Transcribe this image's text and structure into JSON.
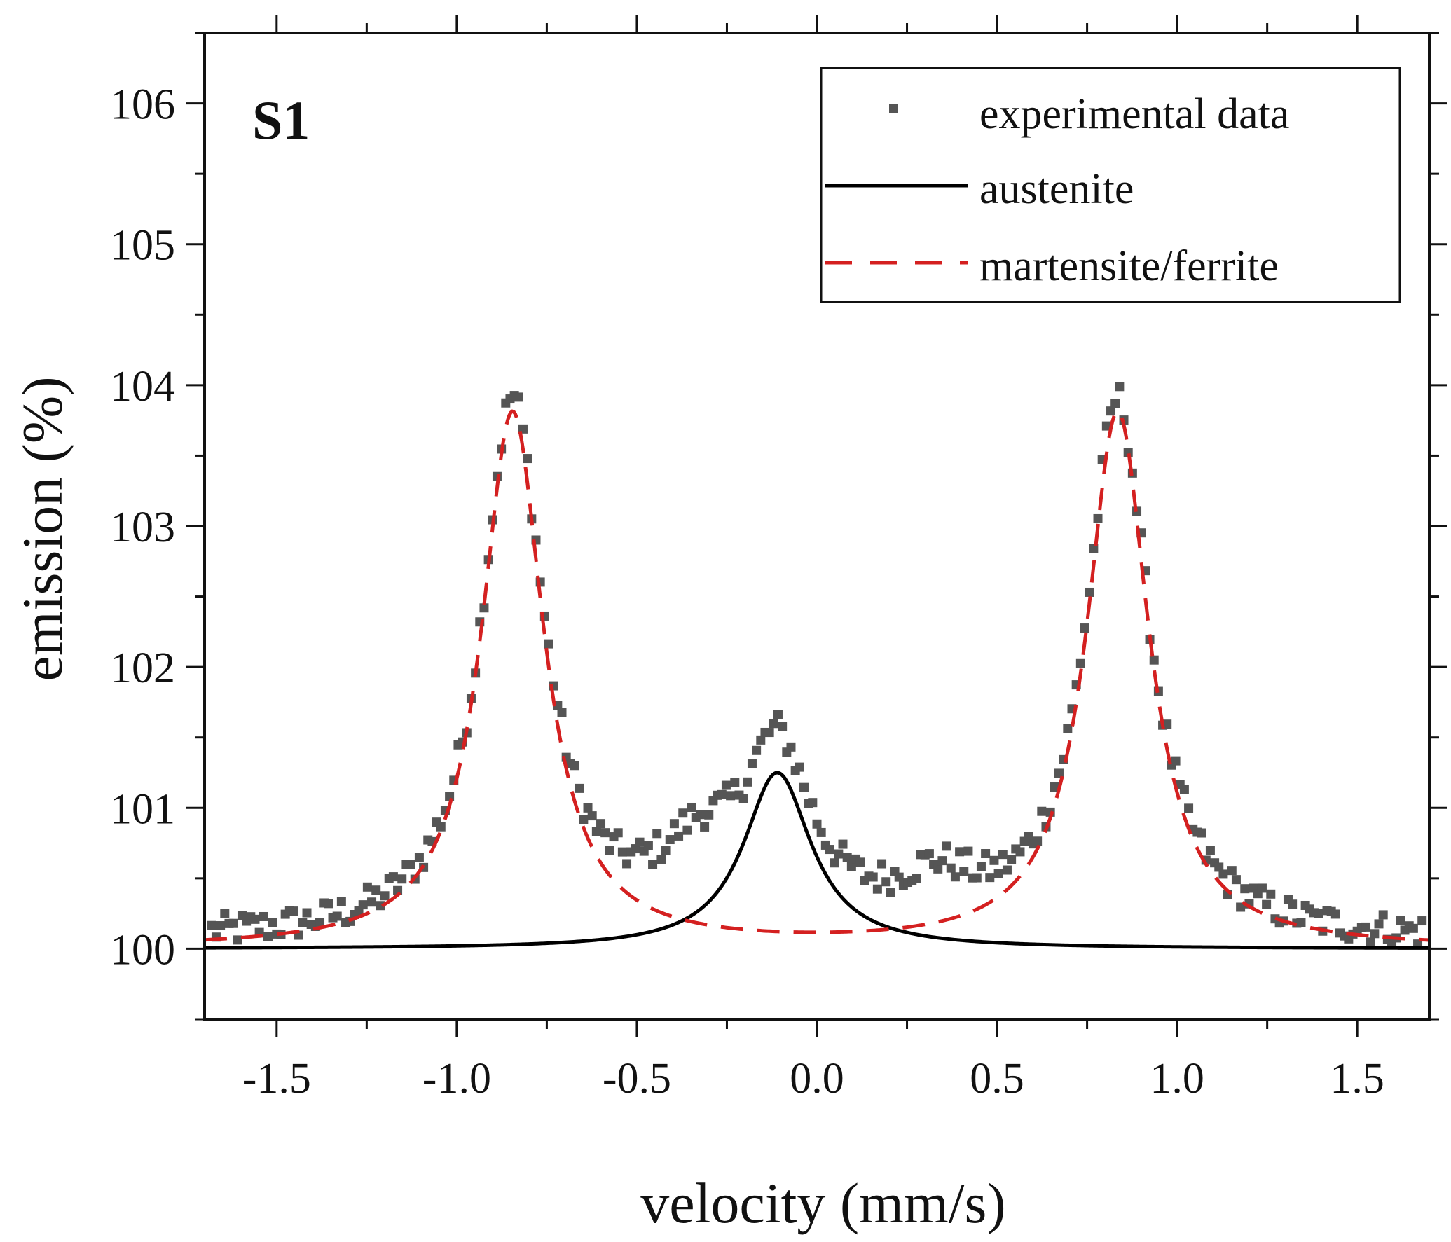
{
  "chart_data": {
    "type": "scatter",
    "panel_label": "S1",
    "xlabel": "velocity (mm/s)",
    "ylabel": "emission (%)",
    "xlim": [
      -1.7,
      1.7
    ],
    "ylim": [
      99.5,
      106.5
    ],
    "x_ticks": [
      -1.5,
      -1.0,
      -0.5,
      0.0,
      0.5,
      1.0,
      1.5
    ],
    "x_tick_labels": [
      "-1.5",
      "-1.0",
      "-0.5",
      "0.0",
      "0.5",
      "1.0",
      "1.5"
    ],
    "y_ticks": [
      100,
      101,
      102,
      103,
      104,
      105,
      106
    ],
    "y_tick_labels": [
      "100",
      "101",
      "102",
      "103",
      "104",
      "105",
      "106"
    ],
    "x_minor_step": 0.25,
    "y_minor_step": 0.5,
    "legend": {
      "position": "top-right",
      "entries": [
        {
          "label": "experimental data",
          "style": "square-marker"
        },
        {
          "label": "austenite",
          "style": "solid-line"
        },
        {
          "label": "martensite/ferrite",
          "style": "dashed-line"
        }
      ]
    },
    "colors": {
      "experimental": "#555555",
      "austenite": "#000000",
      "martensite": "#d42020"
    },
    "series": [
      {
        "name": "experimental data",
        "kind": "scatter",
        "x_start": -1.68,
        "x_step": 0.012,
        "count": 281,
        "noise_amplitude": 0.12,
        "model": "austenite + martensite/ferrite, plus a broad hump of height 0.45 centred at -0.33 mm/s (half-width 0.13) and one of height 0.30 centred at 0.33 mm/s (half-width 0.13)"
      },
      {
        "name": "austenite",
        "kind": "line",
        "shape": "lorentzian",
        "baseline": 100.0,
        "peaks": [
          {
            "center": -0.11,
            "height": 1.25,
            "hwhm": 0.115
          }
        ]
      },
      {
        "name": "martensite/ferrite",
        "kind": "dashed-line",
        "shape": "lorentzian",
        "baseline": 100.0,
        "peaks": [
          {
            "center": -0.845,
            "height": 3.8,
            "hwhm": 0.105
          },
          {
            "center": 0.835,
            "height": 3.8,
            "hwhm": 0.105
          }
        ]
      }
    ]
  }
}
